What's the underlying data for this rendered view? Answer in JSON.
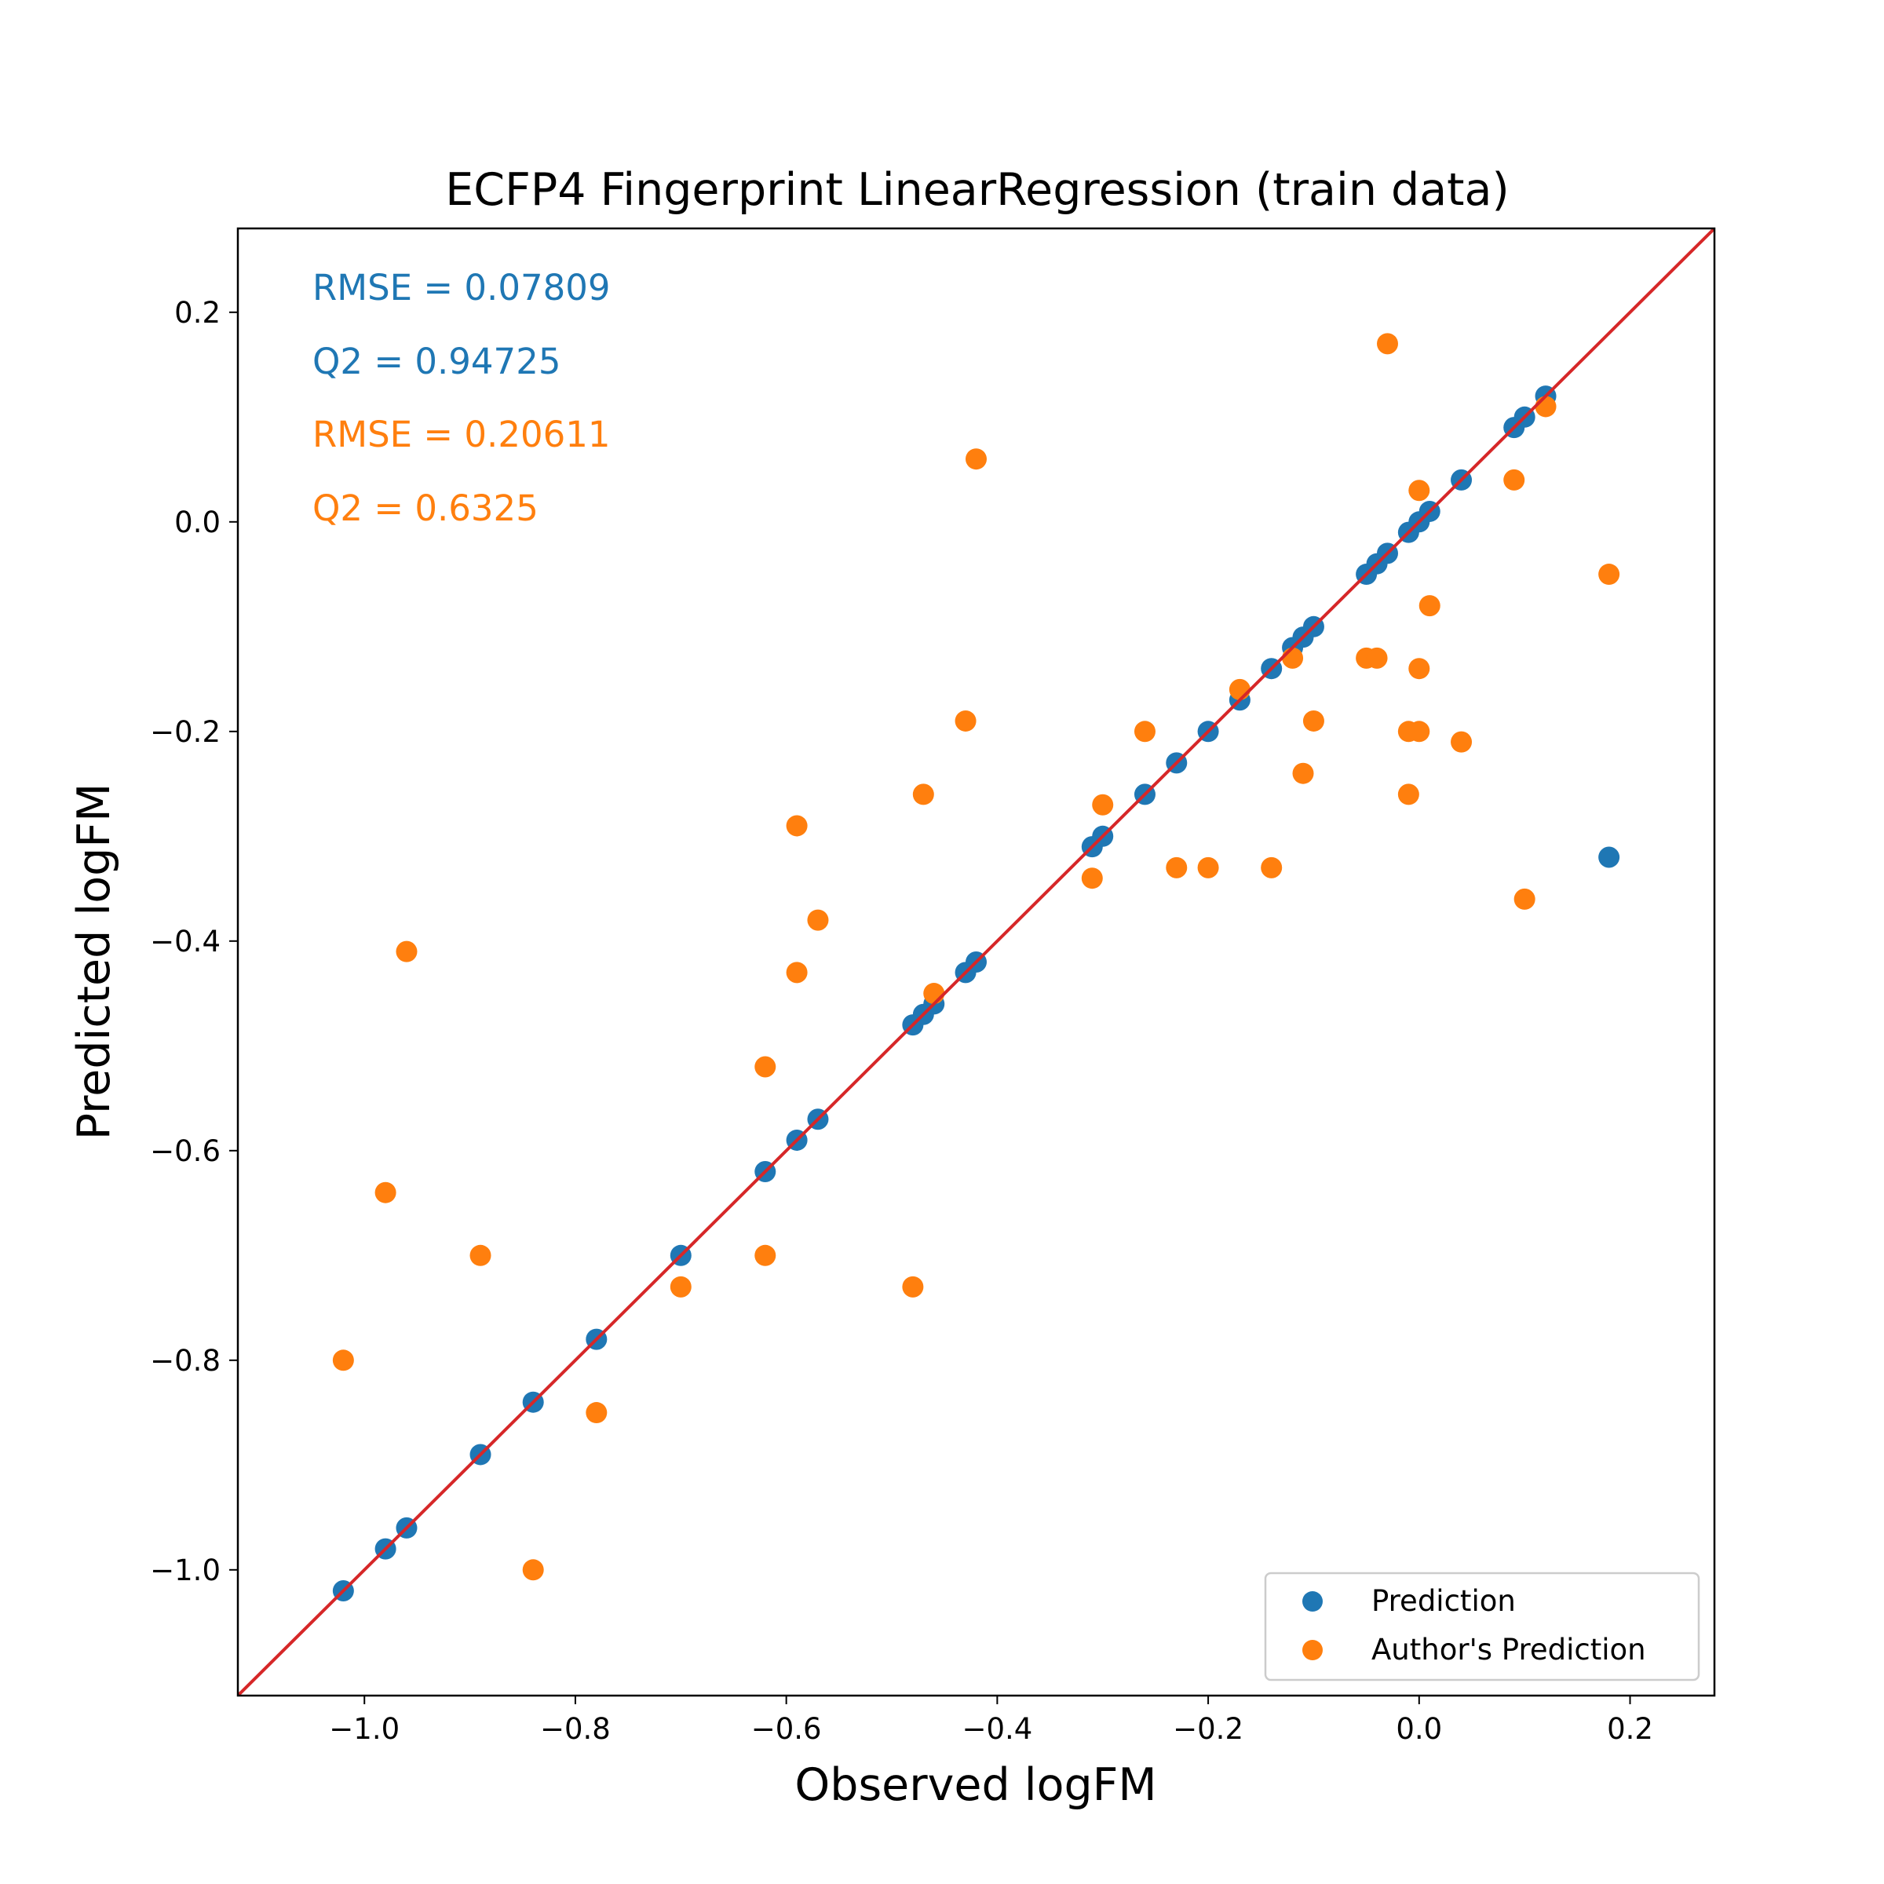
{
  "chart_data": {
    "type": "scatter",
    "title": "ECFP4 Fingerprint LinearRegression (train data)",
    "xlabel": "Observed logFM",
    "ylabel": "Predicted logFM",
    "xlim": [
      -1.12,
      0.28
    ],
    "ylim": [
      -1.12,
      0.28
    ],
    "xticks": [
      -1.0,
      -0.8,
      -0.6,
      -0.4,
      -0.2,
      0.0,
      0.2
    ],
    "yticks": [
      -1.0,
      -0.8,
      -0.6,
      -0.4,
      -0.2,
      0.0,
      0.2
    ],
    "xtick_labels": [
      "−1.0",
      "−0.8",
      "−0.6",
      "−0.4",
      "−0.2",
      "0.0",
      "0.2"
    ],
    "ytick_labels": [
      "−1.0",
      "−0.8",
      "−0.6",
      "−0.4",
      "−0.2",
      "0.0",
      "0.2"
    ],
    "grid": false,
    "legend_position": "bottom-right",
    "reference_line": {
      "kind": "identity",
      "color": "#d62728"
    },
    "annotations": [
      {
        "text": "RMSE = 0.07809",
        "color": "#1f77b4"
      },
      {
        "text": "Q2 = 0.94725",
        "color": "#1f77b4"
      },
      {
        "text": "RMSE = 0.20611",
        "color": "#ff7f0e"
      },
      {
        "text": "Q2 = 0.6325",
        "color": "#ff7f0e"
      }
    ],
    "series": [
      {
        "name": "Prediction",
        "color": "#1f77b4",
        "points": [
          [
            -1.02,
            -1.02
          ],
          [
            -0.98,
            -0.98
          ],
          [
            -0.96,
            -0.96
          ],
          [
            -0.89,
            -0.89
          ],
          [
            -0.84,
            -0.84
          ],
          [
            -0.78,
            -0.78
          ],
          [
            -0.7,
            -0.7
          ],
          [
            -0.62,
            -0.62
          ],
          [
            -0.59,
            -0.59
          ],
          [
            -0.57,
            -0.57
          ],
          [
            -0.48,
            -0.48
          ],
          [
            -0.47,
            -0.47
          ],
          [
            -0.46,
            -0.46
          ],
          [
            -0.43,
            -0.43
          ],
          [
            -0.42,
            -0.42
          ],
          [
            -0.31,
            -0.31
          ],
          [
            -0.3,
            -0.3
          ],
          [
            -0.26,
            -0.26
          ],
          [
            -0.23,
            -0.23
          ],
          [
            -0.2,
            -0.2
          ],
          [
            -0.17,
            -0.17
          ],
          [
            -0.14,
            -0.14
          ],
          [
            -0.12,
            -0.12
          ],
          [
            -0.11,
            -0.11
          ],
          [
            -0.1,
            -0.1
          ],
          [
            -0.05,
            -0.05
          ],
          [
            -0.04,
            -0.04
          ],
          [
            -0.03,
            -0.03
          ],
          [
            -0.01,
            -0.01
          ],
          [
            0.0,
            0.0
          ],
          [
            0.01,
            0.01
          ],
          [
            0.04,
            0.04
          ],
          [
            0.09,
            0.09
          ],
          [
            0.1,
            0.1
          ],
          [
            0.12,
            0.12
          ],
          [
            0.18,
            -0.32
          ]
        ]
      },
      {
        "name": "Author's Prediction",
        "color": "#ff7f0e",
        "points": [
          [
            -1.02,
            -0.8
          ],
          [
            -0.98,
            -0.64
          ],
          [
            -0.96,
            -0.41
          ],
          [
            -0.89,
            -0.7
          ],
          [
            -0.84,
            -1.0
          ],
          [
            -0.78,
            -0.85
          ],
          [
            -0.7,
            -0.73
          ],
          [
            -0.62,
            -0.52
          ],
          [
            -0.62,
            -0.7
          ],
          [
            -0.59,
            -0.29
          ],
          [
            -0.59,
            -0.43
          ],
          [
            -0.57,
            -0.38
          ],
          [
            -0.48,
            -0.73
          ],
          [
            -0.47,
            -0.26
          ],
          [
            -0.46,
            -0.45
          ],
          [
            -0.43,
            -0.19
          ],
          [
            -0.42,
            0.06
          ],
          [
            -0.31,
            -0.34
          ],
          [
            -0.3,
            -0.27
          ],
          [
            -0.26,
            -0.2
          ],
          [
            -0.23,
            -0.33
          ],
          [
            -0.2,
            -0.33
          ],
          [
            -0.17,
            -0.16
          ],
          [
            -0.14,
            -0.33
          ],
          [
            -0.12,
            -0.13
          ],
          [
            -0.11,
            -0.24
          ],
          [
            -0.1,
            -0.19
          ],
          [
            -0.05,
            -0.13
          ],
          [
            -0.04,
            -0.13
          ],
          [
            -0.03,
            0.17
          ],
          [
            -0.01,
            -0.2
          ],
          [
            -0.01,
            -0.26
          ],
          [
            0.0,
            0.03
          ],
          [
            0.0,
            -0.14
          ],
          [
            0.0,
            -0.2
          ],
          [
            0.01,
            -0.08
          ],
          [
            0.04,
            -0.21
          ],
          [
            0.09,
            0.04
          ],
          [
            0.1,
            -0.36
          ],
          [
            0.12,
            0.11
          ],
          [
            0.18,
            -0.05
          ]
        ]
      }
    ]
  }
}
